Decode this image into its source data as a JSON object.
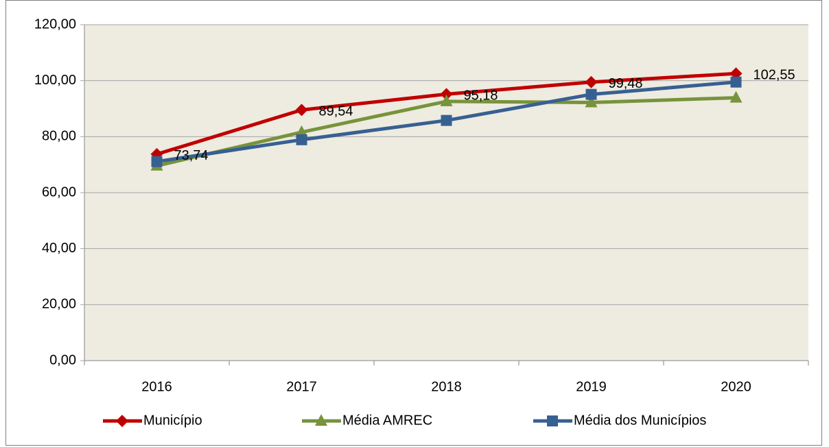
{
  "chart_data": {
    "type": "line",
    "categories": [
      "2016",
      "2017",
      "2018",
      "2019",
      "2020"
    ],
    "series": [
      {
        "name": "Município",
        "color": "#c00000",
        "marker": "diamond",
        "values": [
          73.74,
          89.54,
          95.18,
          99.48,
          102.55
        ],
        "value_labels": [
          "73,74",
          "89,54",
          "95,18",
          "99,48",
          "102,55"
        ]
      },
      {
        "name": "Média AMREC",
        "color": "#77933c",
        "marker": "triangle",
        "values": [
          69.6,
          81.6,
          92.6,
          92.2,
          93.9
        ]
      },
      {
        "name": "Média dos Municípios",
        "color": "#376092",
        "marker": "square",
        "values": [
          71.1,
          78.9,
          85.8,
          95.1,
          99.5
        ]
      }
    ],
    "ylim": [
      0,
      120
    ],
    "yticks": [
      {
        "value": 0,
        "label": "0,00"
      },
      {
        "value": 20,
        "label": "20,00"
      },
      {
        "value": 40,
        "label": "40,00"
      },
      {
        "value": 60,
        "label": "60,00"
      },
      {
        "value": 80,
        "label": "80,00"
      },
      {
        "value": 100,
        "label": "100,00"
      },
      {
        "value": 120,
        "label": "120,00"
      }
    ],
    "grid": true,
    "legend": "bottom"
  }
}
